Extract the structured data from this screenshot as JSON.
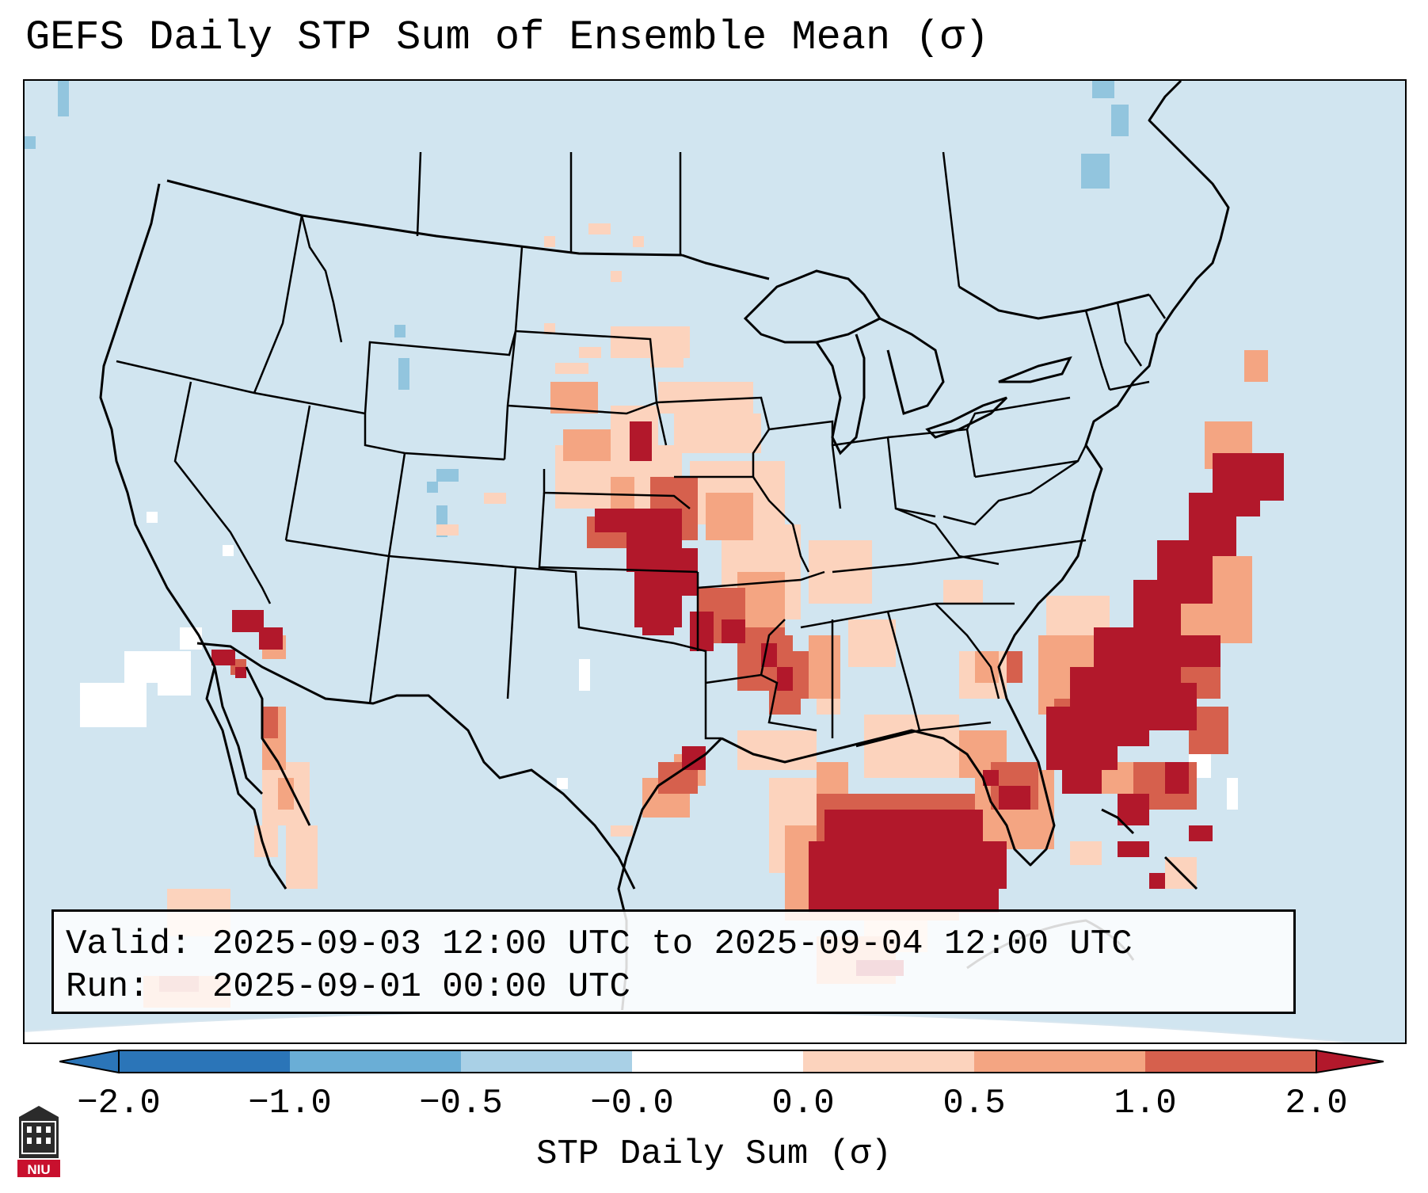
{
  "title": "GEFS Daily STP Sum of Ensemble Mean (σ)",
  "info": {
    "valid_line": "Valid: 2025-09-03 12:00 UTC to 2025-09-04 12:00 UTC",
    "run_line": "Run:   2025-09-01 00:00 UTC"
  },
  "colorbar": {
    "label": "STP Daily Sum (σ)",
    "ticks": [
      "−2.0",
      "−1.0",
      "−0.5",
      "−0.0",
      "0.0",
      "0.5",
      "1.0",
      "2.0"
    ],
    "colors": [
      "#2b75b8",
      "#6aaed6",
      "#a9d0e6",
      "#ffffff",
      "#fcd3bd",
      "#f4a582",
      "#d6604d",
      "#b2182b"
    ],
    "extend": "both",
    "map_background_color": "#d1e5f0"
  },
  "logo": {
    "text": "NIU",
    "icon": "university-logo"
  }
}
